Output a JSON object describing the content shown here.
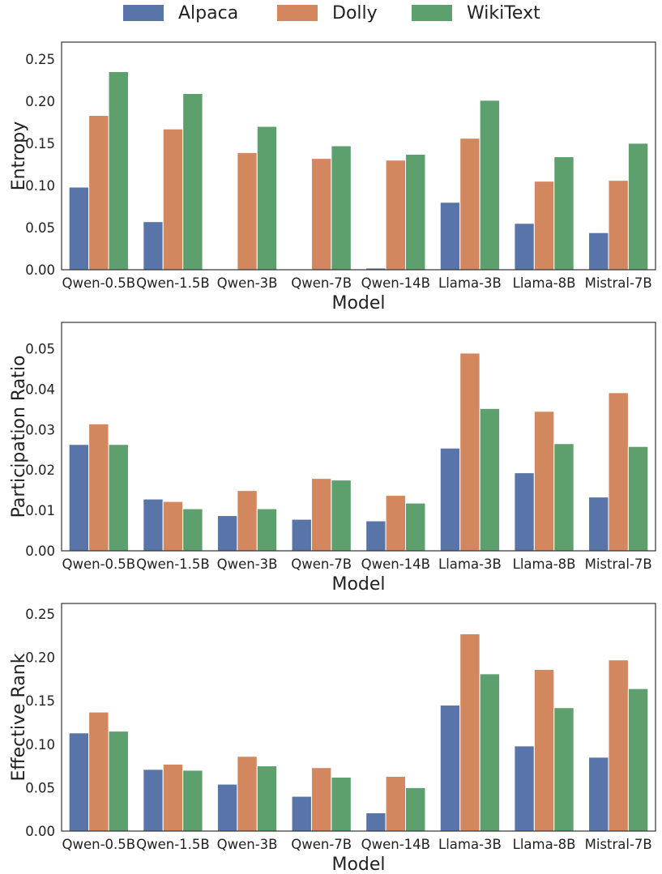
{
  "legend": [
    {
      "name": "Alpaca",
      "color": "#5874a8"
    },
    {
      "name": "Dolly",
      "color": "#d2875f"
    },
    {
      "name": "WikiText",
      "color": "#5d9f6d"
    }
  ],
  "chart_data": [
    {
      "type": "bar",
      "xlabel": "Model",
      "ylabel": "Entropy",
      "ylim": [
        0,
        0.27
      ],
      "yticks": [
        "0.00",
        "0.05",
        "0.10",
        "0.15",
        "0.20",
        "0.25"
      ],
      "categories": [
        "Qwen-0.5B",
        "Qwen-1.5B",
        "Qwen-3B",
        "Qwen-7B",
        "Qwen-14B",
        "Llama-3B",
        "Llama-8B",
        "Mistral-7B"
      ],
      "series": [
        {
          "name": "Alpaca",
          "values": [
            0.098,
            0.057,
            0.0,
            0.0,
            0.002,
            0.08,
            0.055,
            0.044
          ]
        },
        {
          "name": "Dolly",
          "values": [
            0.183,
            0.167,
            0.139,
            0.132,
            0.13,
            0.156,
            0.105,
            0.106
          ]
        },
        {
          "name": "WikiText",
          "values": [
            0.235,
            0.209,
            0.17,
            0.147,
            0.137,
            0.201,
            0.134,
            0.15
          ]
        }
      ],
      "grid": false
    },
    {
      "type": "bar",
      "xlabel": "Model",
      "ylabel": "Participation Ratio",
      "ylim": [
        0,
        0.0565
      ],
      "yticks": [
        "0.00",
        "0.01",
        "0.02",
        "0.03",
        "0.04",
        "0.05"
      ],
      "categories": [
        "Qwen-0.5B",
        "Qwen-1.5B",
        "Qwen-3B",
        "Qwen-7B",
        "Qwen-14B",
        "Llama-3B",
        "Llama-8B",
        "Mistral-7B"
      ],
      "series": [
        {
          "name": "Alpaca",
          "values": [
            0.0263,
            0.0128,
            0.0087,
            0.0078,
            0.0074,
            0.0254,
            0.0193,
            0.0133
          ]
        },
        {
          "name": "Dolly",
          "values": [
            0.0314,
            0.0122,
            0.0149,
            0.0179,
            0.0137,
            0.0489,
            0.0345,
            0.0391
          ]
        },
        {
          "name": "WikiText",
          "values": [
            0.0263,
            0.0104,
            0.0104,
            0.0175,
            0.0118,
            0.0352,
            0.0265,
            0.0258
          ]
        }
      ],
      "grid": false
    },
    {
      "type": "bar",
      "xlabel": "Model",
      "ylabel": "Effective Rank",
      "ylim": [
        0,
        0.262
      ],
      "yticks": [
        "0.00",
        "0.05",
        "0.10",
        "0.15",
        "0.20",
        "0.25"
      ],
      "categories": [
        "Qwen-0.5B",
        "Qwen-1.5B",
        "Qwen-3B",
        "Qwen-7B",
        "Qwen-14B",
        "Llama-3B",
        "Llama-8B",
        "Mistral-7B"
      ],
      "series": [
        {
          "name": "Alpaca",
          "values": [
            0.113,
            0.071,
            0.054,
            0.04,
            0.021,
            0.145,
            0.098,
            0.085
          ]
        },
        {
          "name": "Dolly",
          "values": [
            0.137,
            0.077,
            0.086,
            0.073,
            0.063,
            0.227,
            0.186,
            0.197
          ]
        },
        {
          "name": "WikiText",
          "values": [
            0.115,
            0.07,
            0.075,
            0.062,
            0.05,
            0.181,
            0.142,
            0.164
          ]
        }
      ],
      "grid": false
    }
  ]
}
